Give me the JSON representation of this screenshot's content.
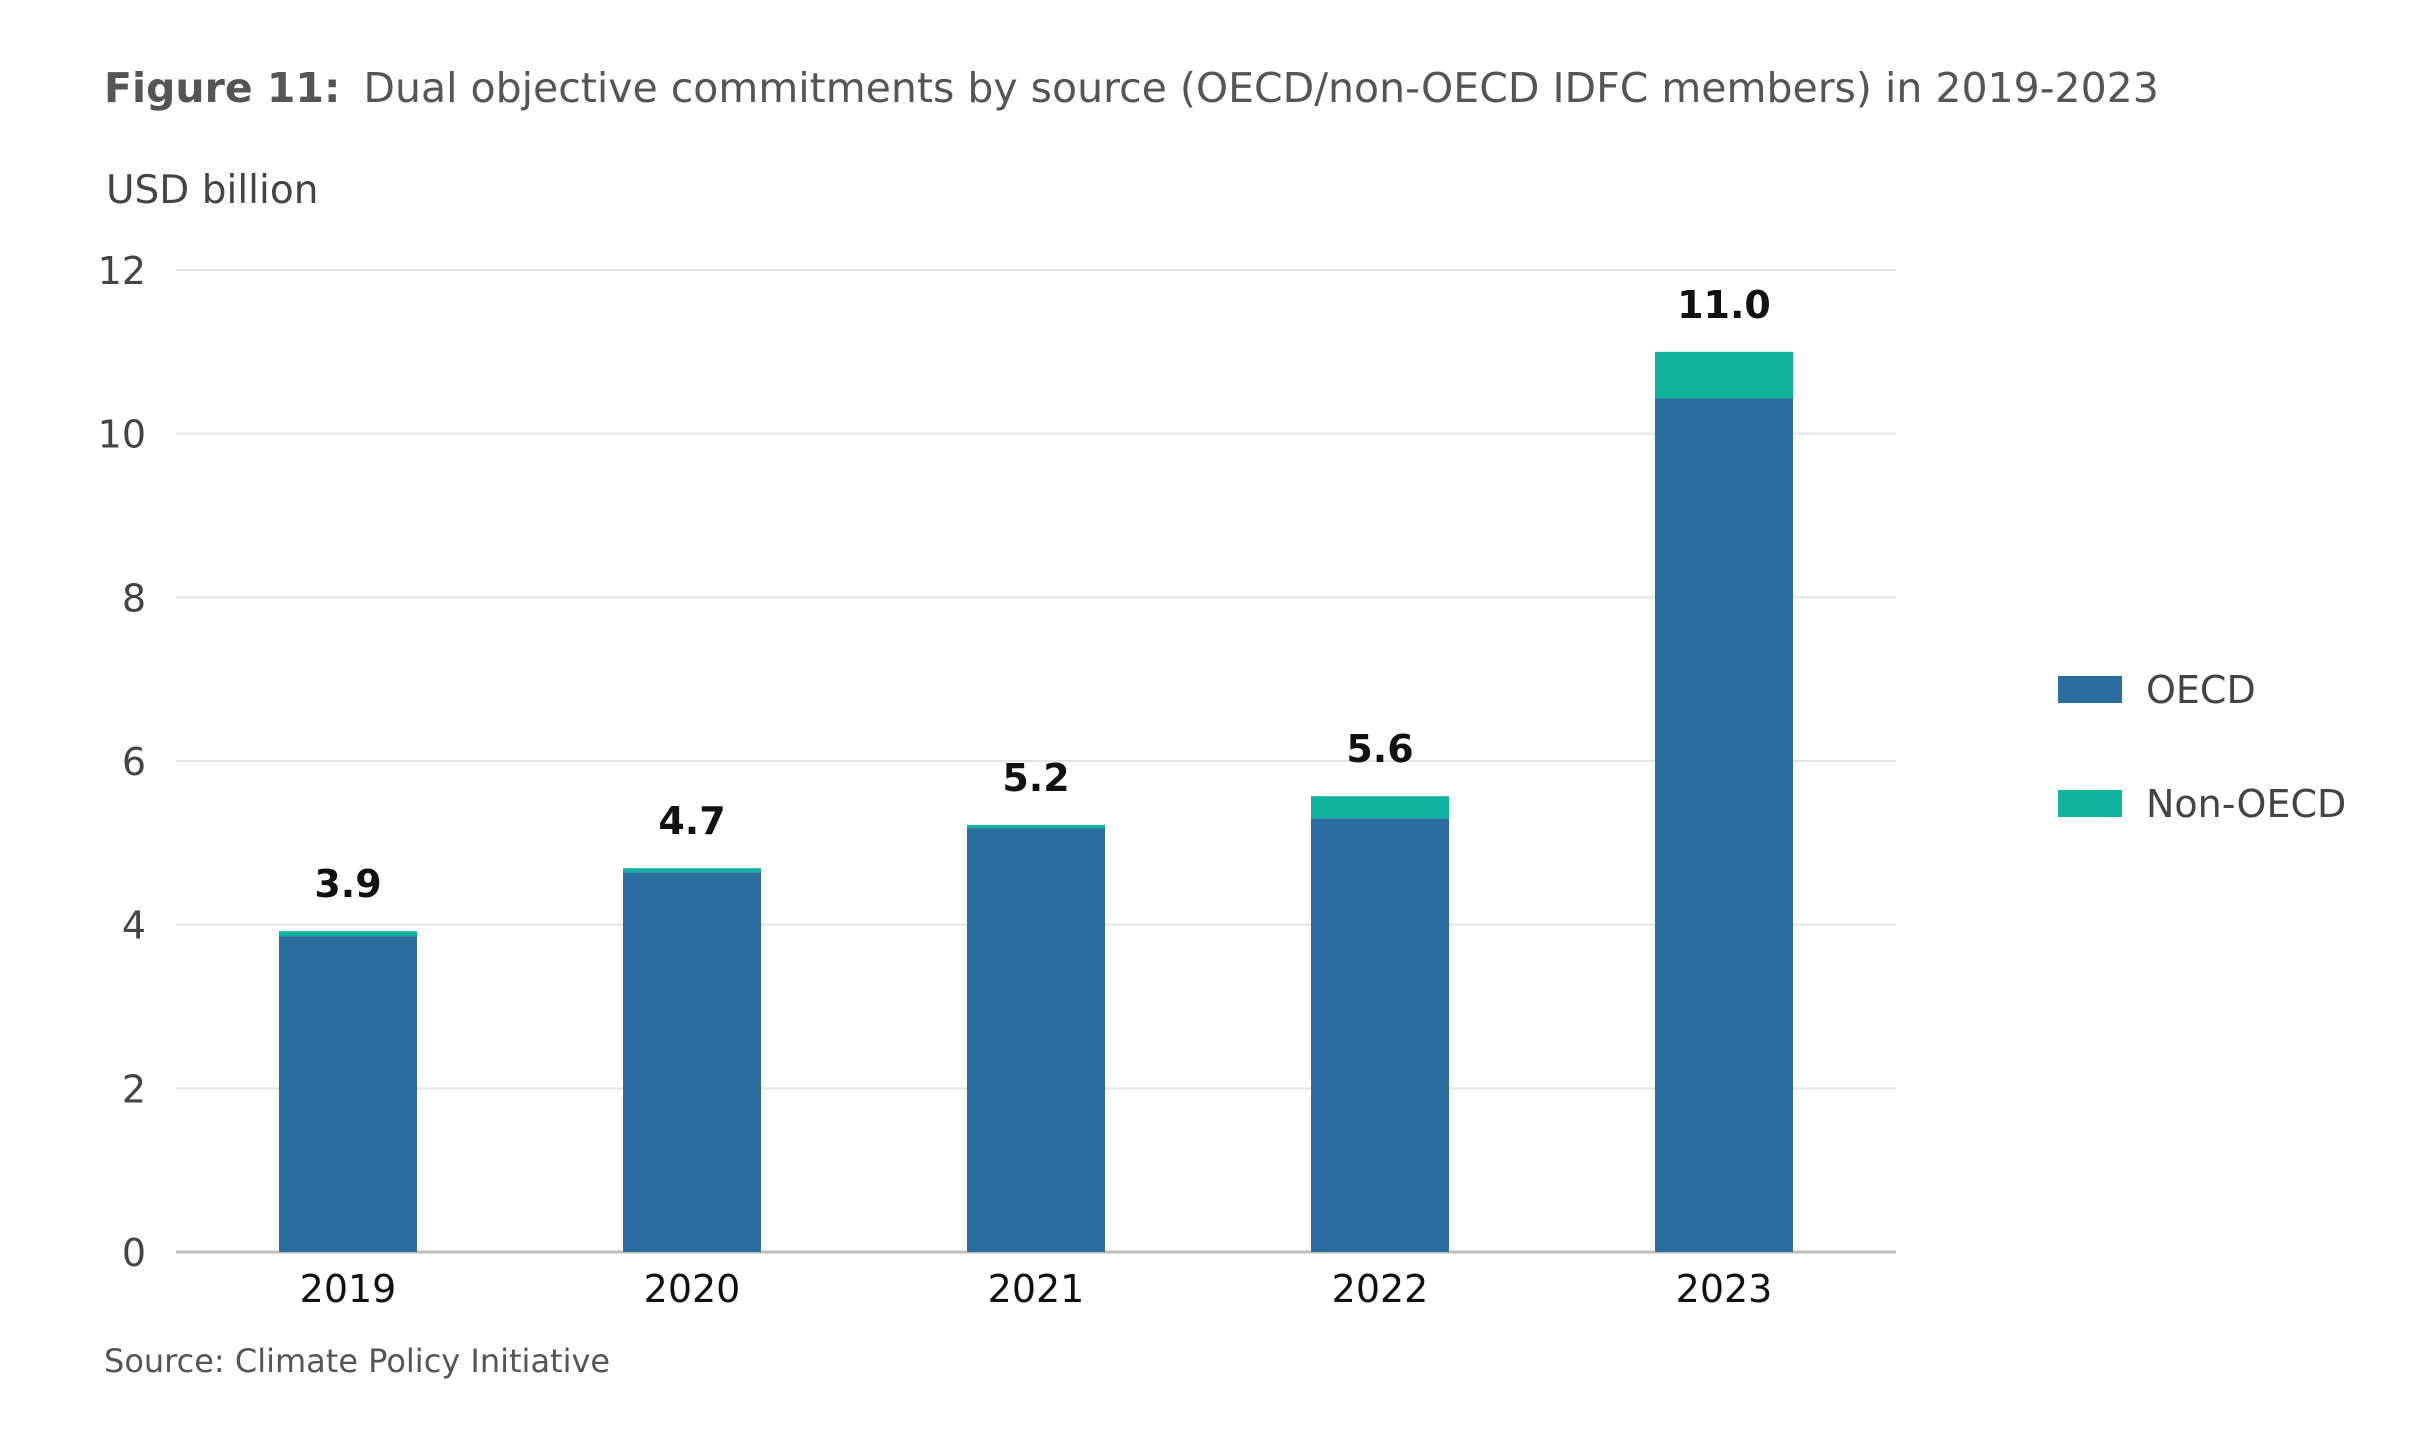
{
  "figure": {
    "title_prefix": "Figure 11:",
    "title": "Dual objective commitments by source (OECD/non-OECD IDFC members) in 2019-2023",
    "source": "Source: Climate Policy Initiative"
  },
  "chart_data": {
    "type": "bar",
    "stacked": true,
    "title": "Figure 11: Dual objective commitments by source (OECD/non-OECD IDFC members) in 2019-2023",
    "ylabel": "USD billion",
    "xlabel": "",
    "categories": [
      "2019",
      "2020",
      "2021",
      "2022",
      "2023"
    ],
    "series": [
      {
        "name": "OECD",
        "color": "#2a6d9e",
        "values": [
          3.86,
          4.64,
          5.18,
          5.3,
          10.43
        ]
      },
      {
        "name": "Non-OECD",
        "color": "#10b39b",
        "values": [
          0.06,
          0.05,
          0.04,
          0.27,
          0.57
        ]
      }
    ],
    "totals": [
      "3.9",
      "4.7",
      "5.2",
      "5.6",
      "11.0"
    ],
    "ylim": [
      0,
      12
    ],
    "yticks": [
      "0",
      "2",
      "4",
      "6",
      "8",
      "10",
      "12"
    ],
    "grid": true,
    "legend_position": "right"
  }
}
